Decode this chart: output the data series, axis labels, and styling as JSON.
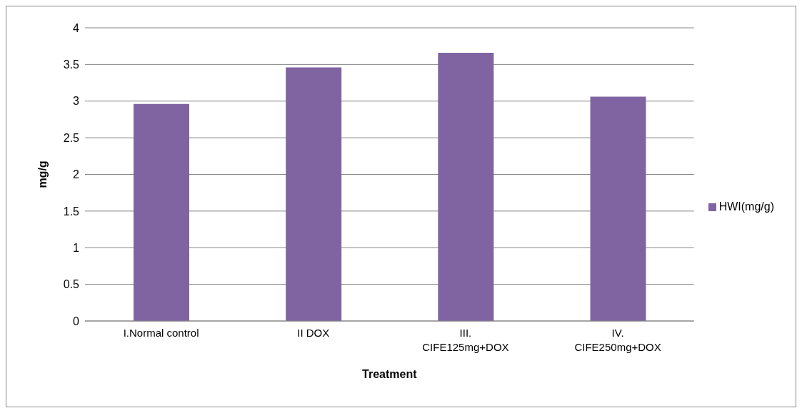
{
  "chart_data": {
    "type": "bar",
    "xlabel": "Treatment",
    "ylabel": "mg/g",
    "categories": [
      "I.Normal control",
      "II DOX",
      "III.\nCIFE125mg+DOX",
      "IV.\nCIFE250mg+DOX"
    ],
    "series": [
      {
        "name": "HWI(mg/g)",
        "color": "#8064a2",
        "values": [
          2.96,
          3.46,
          3.66,
          3.06
        ]
      }
    ],
    "ylim": [
      0,
      4
    ],
    "yticks": [
      0,
      0.5,
      1,
      1.5,
      2,
      2.5,
      3,
      3.5,
      4
    ],
    "grid": "y",
    "legend": "right"
  }
}
